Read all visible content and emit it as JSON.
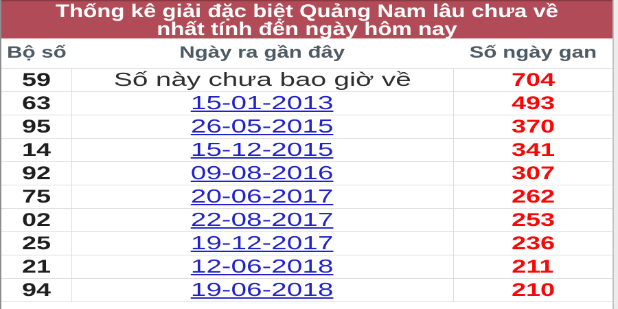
{
  "title": {
    "line1": "Thống kê giải đặc biệt Quảng Nam lâu chưa về",
    "line2": "nhất tính đến ngày hôm nay"
  },
  "table": {
    "headers": {
      "col1": "Bộ số",
      "col2": "Ngày ra gần đây",
      "col3": "Số ngày gan"
    },
    "rows": [
      {
        "number": "59",
        "last_date": "Số này chưa bao giờ về",
        "days": "704"
      },
      {
        "number": "63",
        "last_date": "15-01-2013",
        "days": "493"
      },
      {
        "number": "95",
        "last_date": "26-05-2015",
        "days": "370"
      },
      {
        "number": "14",
        "last_date": "15-12-2015",
        "days": "341"
      },
      {
        "number": "92",
        "last_date": "09-08-2016",
        "days": "307"
      },
      {
        "number": "75",
        "last_date": "20-06-2017",
        "days": "262"
      },
      {
        "number": "02",
        "last_date": "22-08-2017",
        "days": "253"
      },
      {
        "number": "25",
        "last_date": "19-12-2017",
        "days": "236"
      },
      {
        "number": "21",
        "last_date": "12-06-2018",
        "days": "211"
      },
      {
        "number": "94",
        "last_date": "19-06-2018",
        "days": "210"
      }
    ]
  },
  "colors": {
    "header_bg": "#b14b57",
    "header_text": "#ffffff",
    "col_header": "#4e5a64",
    "number": "#1f1f1f",
    "link": "#2222cc",
    "gan": "#fb0505"
  }
}
